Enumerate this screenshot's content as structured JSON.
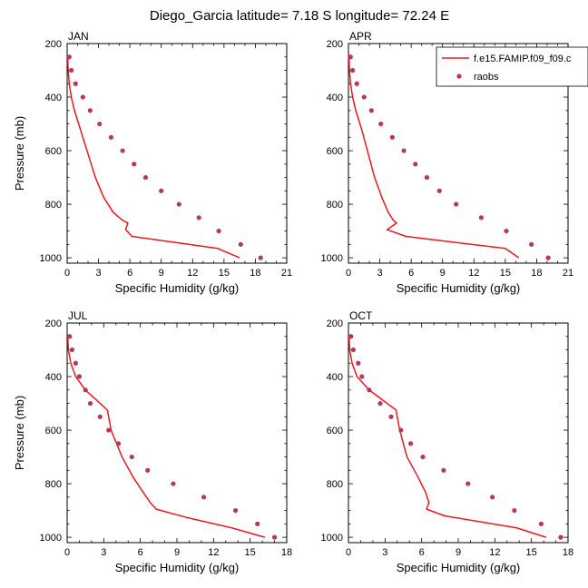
{
  "title": "Diego_Garcia  latitude= 7.18 S longitude= 72.24 E",
  "colors": {
    "model_line": "#e8191c",
    "obs_marker": "#b6365e",
    "axis": "#000000"
  },
  "legend": {
    "placement": "top-right",
    "entries": [
      {
        "label": "f.e15.FAMIP.f09_f09.c",
        "type": "line",
        "color": "#e8191c"
      },
      {
        "label": "raobs",
        "type": "marker",
        "color": "#b6365e"
      }
    ]
  },
  "chart_data": [
    {
      "type": "line",
      "panel_label": "JAN",
      "xlabel": "Specific Humidity (g/kg)",
      "ylabel": "Pressure (mb)",
      "xlim": [
        0,
        21
      ],
      "xticks": [
        0,
        3,
        6,
        9,
        12,
        15,
        18,
        21
      ],
      "ylim": [
        200,
        1020
      ],
      "yticks": [
        200,
        400,
        600,
        800,
        1000
      ],
      "y_inverted": true,
      "series": [
        {
          "kind": "line",
          "x": [
            0.05,
            0.1,
            0.2,
            0.4,
            0.7,
            1.3,
            2.7,
            3.5,
            4.4,
            5.3,
            5.8,
            5.6,
            6.2,
            14.4,
            16.5
          ],
          "y": [
            250,
            300,
            350,
            400,
            450,
            525,
            700,
            775,
            830,
            860,
            870,
            895,
            920,
            965,
            1000
          ]
        },
        {
          "kind": "scatter",
          "x": [
            0.2,
            0.4,
            0.8,
            1.5,
            2.2,
            3.1,
            4.2,
            5.3,
            6.4,
            7.5,
            9.0,
            10.7,
            12.6,
            14.5,
            16.6,
            18.5
          ],
          "y": [
            250,
            300,
            350,
            400,
            450,
            500,
            550,
            600,
            650,
            700,
            750,
            800,
            850,
            900,
            950,
            1000
          ]
        }
      ]
    },
    {
      "type": "line",
      "panel_label": "APR",
      "xlabel": "Specific Humidity (g/kg)",
      "ylabel": "",
      "xlim": [
        0,
        21
      ],
      "xticks": [
        0,
        3,
        6,
        9,
        12,
        15,
        18,
        21
      ],
      "ylim": [
        200,
        1020
      ],
      "yticks": [
        200,
        400,
        600,
        800,
        1000
      ],
      "y_inverted": true,
      "series": [
        {
          "kind": "line",
          "x": [
            0.05,
            0.1,
            0.2,
            0.4,
            0.7,
            1.3,
            2.5,
            3.2,
            3.8,
            4.3,
            4.6,
            3.7,
            5.5,
            15.0,
            16.3
          ],
          "y": [
            250,
            300,
            350,
            400,
            450,
            525,
            700,
            775,
            830,
            860,
            870,
            895,
            920,
            965,
            1000
          ]
        },
        {
          "kind": "scatter",
          "x": [
            0.2,
            0.4,
            0.8,
            1.5,
            2.2,
            3.1,
            4.2,
            5.3,
            6.4,
            7.5,
            8.7,
            10.3,
            12.7,
            15.1,
            17.5,
            19.1
          ],
          "y": [
            250,
            300,
            350,
            400,
            450,
            500,
            550,
            600,
            650,
            700,
            750,
            800,
            850,
            900,
            950,
            1000
          ]
        }
      ]
    },
    {
      "type": "line",
      "panel_label": "JUL",
      "xlabel": "Specific Humidity (g/kg)",
      "ylabel": "Pressure (mb)",
      "xlim": [
        0,
        18
      ],
      "xticks": [
        0,
        3,
        6,
        9,
        12,
        15,
        18
      ],
      "ylim": [
        200,
        1020
      ],
      "yticks": [
        200,
        400,
        600,
        800,
        1000
      ],
      "y_inverted": true,
      "series": [
        {
          "kind": "line",
          "x": [
            0.05,
            0.1,
            0.3,
            0.7,
            1.5,
            3.3,
            3.6,
            4.5,
            5.4,
            6.2,
            6.8,
            7.3,
            9.7,
            13.5,
            16.2
          ],
          "y": [
            250,
            300,
            350,
            400,
            450,
            525,
            600,
            700,
            775,
            830,
            870,
            895,
            925,
            965,
            1000
          ]
        },
        {
          "kind": "scatter",
          "x": [
            0.2,
            0.4,
            0.7,
            1.0,
            1.5,
            1.9,
            2.7,
            3.4,
            4.2,
            5.3,
            6.6,
            8.7,
            11.2,
            13.8,
            15.6,
            17.0
          ],
          "y": [
            250,
            300,
            350,
            400,
            450,
            500,
            550,
            600,
            650,
            700,
            750,
            800,
            850,
            900,
            950,
            1000
          ]
        }
      ]
    },
    {
      "type": "line",
      "panel_label": "OCT",
      "xlabel": "Specific Humidity (g/kg)",
      "ylabel": "",
      "xlim": [
        0,
        18
      ],
      "xticks": [
        0,
        3,
        6,
        9,
        12,
        15,
        18
      ],
      "ylim": [
        200,
        1020
      ],
      "yticks": [
        200,
        400,
        600,
        800,
        1000
      ],
      "y_inverted": true,
      "series": [
        {
          "kind": "line",
          "x": [
            0.05,
            0.1,
            0.3,
            0.7,
            1.7,
            3.9,
            4.2,
            4.8,
            5.7,
            6.3,
            6.6,
            6.4,
            7.9,
            13.8,
            16.2
          ],
          "y": [
            250,
            300,
            350,
            400,
            450,
            525,
            600,
            700,
            775,
            830,
            870,
            895,
            920,
            965,
            1000
          ]
        },
        {
          "kind": "scatter",
          "x": [
            0.2,
            0.4,
            0.8,
            1.1,
            1.7,
            2.6,
            3.5,
            4.3,
            5.1,
            6.1,
            7.8,
            9.8,
            11.8,
            13.6,
            15.8,
            17.4
          ],
          "y": [
            250,
            300,
            350,
            400,
            450,
            500,
            550,
            600,
            650,
            700,
            750,
            800,
            850,
            900,
            950,
            1000
          ]
        }
      ]
    }
  ]
}
